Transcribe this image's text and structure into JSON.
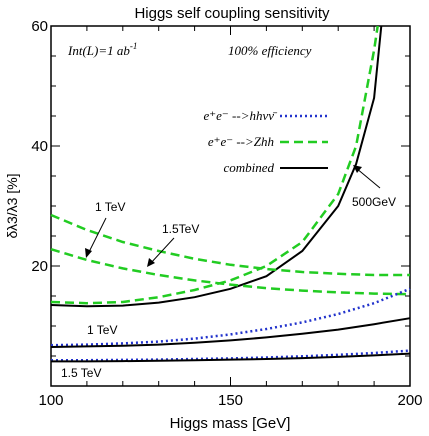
{
  "chart_data": {
    "type": "line",
    "title": "Higgs self coupling sensitivity",
    "xlabel": "Higgs mass [GeV]",
    "ylabel": "δλ3/λ3 [%]",
    "xlim": [
      100,
      200
    ],
    "ylim": [
      0,
      60
    ],
    "x_ticks": [
      "100",
      "150",
      "200"
    ],
    "y_ticks": [
      "20",
      "40",
      "60"
    ],
    "grid": false,
    "annotations": {
      "lumi": "Int(L)=1 ab",
      "lumi_sup": "-1",
      "efficiency": "100% efficiency",
      "tev1_top": "1 TeV",
      "tev15_top": "1.5TeV",
      "energy_500": "500GeV",
      "tev1_bottom": "1 TeV",
      "tev15_bottom": "1.5 TeV"
    },
    "legend": {
      "placement": "upper-center",
      "entries": [
        {
          "label": "e⁺e⁻ -->hhνν̄",
          "color": "#2233cc",
          "style": "dotted"
        },
        {
          "label": "e⁺e⁻ -->Zhh",
          "color": "#22cc22",
          "style": "dashed"
        },
        {
          "label": "combined",
          "color": "#000000",
          "style": "solid"
        }
      ]
    },
    "series": [
      {
        "id": "zhh_500",
        "color": "#22cc22",
        "style": "dashed",
        "x": [
          100,
          110,
          120,
          130,
          140,
          150,
          160,
          170,
          180,
          185,
          190,
          191
        ],
        "y": [
          14.0,
          13.8,
          14.0,
          14.8,
          16.0,
          17.6,
          20.0,
          24.0,
          32.0,
          40.0,
          56.0,
          60.0
        ]
      },
      {
        "id": "comb_500",
        "color": "#000000",
        "style": "solid",
        "x": [
          100,
          110,
          120,
          130,
          140,
          150,
          160,
          170,
          180,
          185,
          190,
          192
        ],
        "y": [
          13.5,
          13.3,
          13.4,
          13.9,
          14.8,
          16.2,
          18.3,
          22.5,
          30.0,
          37.0,
          48.0,
          60.0
        ]
      },
      {
        "id": "zhh_1tev",
        "color": "#22cc22",
        "style": "dashed",
        "x": [
          100,
          110,
          120,
          130,
          140,
          150,
          160,
          170,
          180,
          190,
          200
        ],
        "y": [
          28.5,
          26.0,
          24.0,
          22.5,
          21.2,
          20.2,
          19.5,
          19.0,
          18.7,
          18.5,
          18.5
        ]
      },
      {
        "id": "zhh_15tev",
        "color": "#22cc22",
        "style": "dashed",
        "x": [
          100,
          110,
          120,
          130,
          140,
          150,
          160,
          170,
          180,
          190,
          200
        ],
        "y": [
          22.8,
          21.0,
          19.6,
          18.5,
          17.6,
          16.9,
          16.3,
          15.9,
          15.6,
          15.4,
          15.3
        ]
      },
      {
        "id": "hhvv_1tev",
        "color": "#2233cc",
        "style": "dotted",
        "x": [
          100,
          110,
          120,
          130,
          140,
          150,
          160,
          170,
          180,
          190,
          200
        ],
        "y": [
          6.8,
          6.9,
          7.1,
          7.4,
          7.9,
          8.6,
          9.5,
          10.6,
          12.0,
          13.8,
          16.2
        ]
      },
      {
        "id": "comb_1tev",
        "color": "#000000",
        "style": "solid",
        "x": [
          100,
          110,
          120,
          130,
          140,
          150,
          160,
          170,
          180,
          190,
          200
        ],
        "y": [
          6.5,
          6.6,
          6.7,
          6.9,
          7.2,
          7.6,
          8.1,
          8.7,
          9.4,
          10.3,
          11.3
        ]
      },
      {
        "id": "hhvv_15tev",
        "color": "#2233cc",
        "style": "dotted",
        "x": [
          100,
          110,
          120,
          130,
          140,
          150,
          160,
          170,
          180,
          190,
          200
        ],
        "y": [
          4.3,
          4.3,
          4.35,
          4.4,
          4.5,
          4.6,
          4.75,
          4.95,
          5.2,
          5.5,
          5.9
        ]
      },
      {
        "id": "comb_15tev",
        "color": "#000000",
        "style": "solid",
        "x": [
          100,
          110,
          120,
          130,
          140,
          150,
          160,
          170,
          180,
          190,
          200
        ],
        "y": [
          4.1,
          4.1,
          4.15,
          4.2,
          4.3,
          4.4,
          4.5,
          4.65,
          4.85,
          5.1,
          5.4
        ]
      }
    ]
  }
}
